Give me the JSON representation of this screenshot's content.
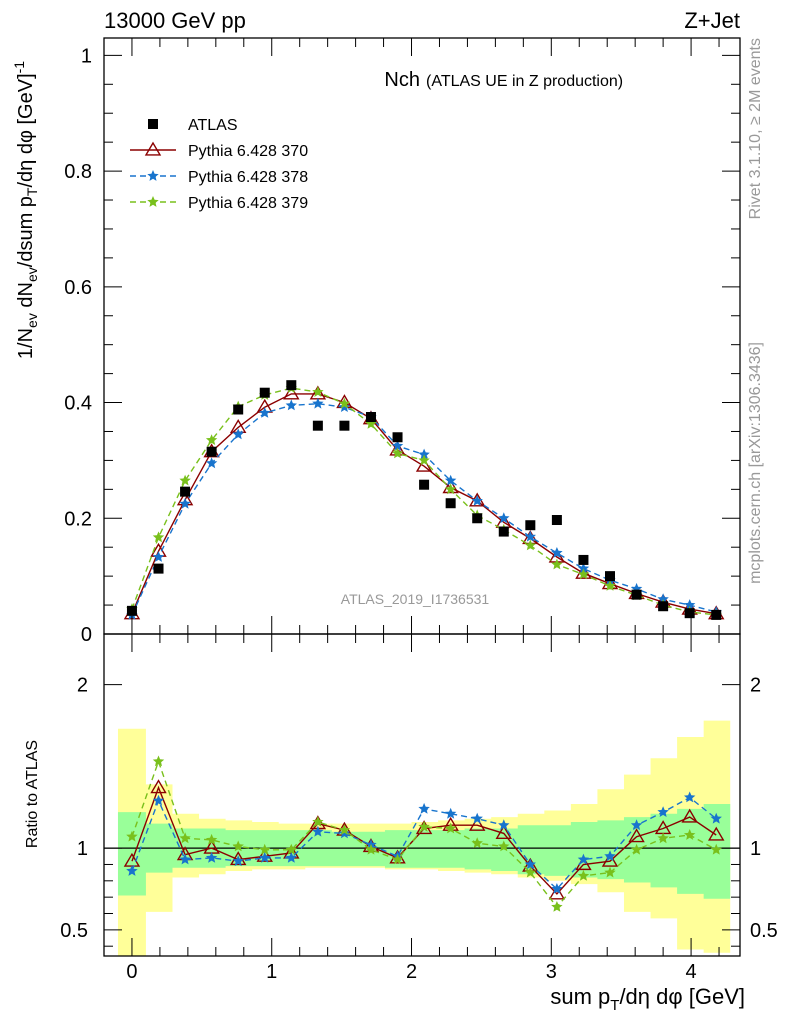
{
  "header": {
    "energy_label": "13000 GeV pp",
    "process_label": "Z+Jet",
    "side_label_top": "Rivet 3.1.10, ≥ 2M events",
    "side_label_bottom": "mcplots.cern.ch [arXiv:1306.3436]",
    "analysis_id": "ATLAS_2019_I1736531"
  },
  "chart_data": [
    {
      "type": "line",
      "title_main": "Nch",
      "title_sub": "(ATLAS UE in Z production)",
      "ylabel": "1/N_ev dN_ev/dsum p_T/dη dφ [GeV]^-1",
      "xlim": [
        -0.2,
        4.35
      ],
      "ylim": [
        0,
        1.03
      ],
      "yticks": [
        0,
        0.2,
        0.4,
        0.6,
        0.8,
        1
      ],
      "ytick_labels": [
        "0",
        "0.2",
        "0.4",
        "0.6",
        "0.8",
        "1"
      ],
      "legend_position": "top-left",
      "x": [
        0,
        0.19,
        0.38,
        0.57,
        0.76,
        0.95,
        1.14,
        1.33,
        1.52,
        1.71,
        1.9,
        2.09,
        2.28,
        2.47,
        2.66,
        2.85,
        3.04,
        3.23,
        3.42,
        3.61,
        3.8,
        3.99,
        4.18
      ],
      "series": [
        {
          "name": "ATLAS",
          "color": "#000000",
          "marker": "square",
          "values": [
            0.04,
            0.113,
            0.246,
            0.315,
            0.388,
            0.417,
            0.43,
            0.36,
            0.36,
            0.375,
            0.34,
            0.258,
            0.226,
            0.2,
            0.177,
            0.188,
            0.197,
            0.128,
            0.1,
            0.068,
            0.048,
            0.036,
            0.033
          ]
        },
        {
          "name": "Pythia 6.428 370",
          "color": "#8b0000",
          "marker": "triangle-open",
          "dash": "",
          "values": [
            0.035,
            0.143,
            0.232,
            0.315,
            0.357,
            0.392,
            0.415,
            0.415,
            0.4,
            0.372,
            0.318,
            0.29,
            0.253,
            0.23,
            0.193,
            0.165,
            0.133,
            0.105,
            0.087,
            0.07,
            0.055,
            0.043,
            0.035
          ]
        },
        {
          "name": "Pythia 6.428 378",
          "color": "#1874cd",
          "marker": "star",
          "dash": "6,4",
          "values": [
            0.033,
            0.133,
            0.225,
            0.295,
            0.345,
            0.382,
            0.395,
            0.398,
            0.392,
            0.375,
            0.325,
            0.31,
            0.265,
            0.23,
            0.2,
            0.168,
            0.14,
            0.113,
            0.093,
            0.078,
            0.06,
            0.05,
            0.038
          ]
        },
        {
          "name": "Pythia 6.428 379",
          "color": "#79c01c",
          "marker": "star",
          "dash": "6,4",
          "values": [
            0.043,
            0.167,
            0.265,
            0.335,
            0.393,
            0.413,
            0.425,
            0.418,
            0.398,
            0.363,
            0.312,
            0.3,
            0.25,
            0.205,
            0.18,
            0.153,
            0.12,
            0.103,
            0.083,
            0.067,
            0.05,
            0.038,
            0.033
          ]
        }
      ]
    },
    {
      "type": "line",
      "ylabel": "Ratio to ATLAS",
      "xlabel": "sum p_T/dη dφ [GeV]",
      "xlim": [
        -0.2,
        4.35
      ],
      "ylim": [
        0.34,
        2.31
      ],
      "yticks": [
        0.5,
        1,
        2
      ],
      "ytick_labels": [
        "0.5",
        "1",
        "2"
      ],
      "xticks": [
        0,
        1,
        2,
        3,
        4
      ],
      "xtick_labels": [
        "0",
        "1",
        "2",
        "3",
        "4"
      ],
      "reference_line": 1,
      "x": [
        0,
        0.19,
        0.38,
        0.57,
        0.76,
        0.95,
        1.14,
        1.33,
        1.52,
        1.71,
        1.9,
        2.09,
        2.28,
        2.47,
        2.66,
        2.85,
        3.04,
        3.23,
        3.42,
        3.61,
        3.8,
        3.99,
        4.18
      ],
      "bin_edges": [
        -0.1,
        0.1,
        0.29,
        0.48,
        0.67,
        0.86,
        1.05,
        1.24,
        1.43,
        1.62,
        1.81,
        2.0,
        2.19,
        2.38,
        2.57,
        2.76,
        2.95,
        3.14,
        3.33,
        3.52,
        3.71,
        3.9,
        4.09,
        4.28
      ],
      "band_inner": {
        "color": "#99ff99",
        "lower": [
          0.71,
          0.85,
          0.88,
          0.88,
          0.89,
          0.89,
          0.89,
          0.89,
          0.89,
          0.89,
          0.88,
          0.88,
          0.88,
          0.87,
          0.86,
          0.84,
          0.83,
          0.82,
          0.81,
          0.79,
          0.76,
          0.72,
          0.69
        ],
        "upper": [
          1.22,
          1.15,
          1.12,
          1.12,
          1.11,
          1.11,
          1.11,
          1.11,
          1.1,
          1.1,
          1.11,
          1.11,
          1.11,
          1.12,
          1.12,
          1.14,
          1.14,
          1.16,
          1.17,
          1.19,
          1.21,
          1.24,
          1.27
        ]
      },
      "band_outer": {
        "color": "#ffff99",
        "lower": [
          0.34,
          0.61,
          0.82,
          0.84,
          0.86,
          0.87,
          0.87,
          0.88,
          0.88,
          0.88,
          0.87,
          0.87,
          0.86,
          0.85,
          0.84,
          0.82,
          0.8,
          0.78,
          0.73,
          0.61,
          0.57,
          0.38,
          0.36
        ],
        "upper": [
          1.73,
          1.39,
          1.21,
          1.18,
          1.17,
          1.16,
          1.15,
          1.15,
          1.15,
          1.15,
          1.15,
          1.16,
          1.17,
          1.18,
          1.19,
          1.21,
          1.23,
          1.27,
          1.36,
          1.45,
          1.55,
          1.68,
          1.78
        ]
      },
      "series": [
        {
          "name": "Pythia 6.428 370",
          "color": "#8b0000",
          "marker": "triangle-open",
          "dash": "",
          "values": [
            0.92,
            1.37,
            0.96,
            1.0,
            0.93,
            0.95,
            0.97,
            1.15,
            1.11,
            1.01,
            0.94,
            1.12,
            1.14,
            1.14,
            1.09,
            0.89,
            0.72,
            0.9,
            0.92,
            1.07,
            1.12,
            1.19,
            1.08
          ]
        },
        {
          "name": "Pythia 6.428 378",
          "color": "#1874cd",
          "marker": "star",
          "dash": "6,4",
          "values": [
            0.86,
            1.29,
            0.93,
            0.94,
            0.92,
            0.94,
            0.94,
            1.1,
            1.09,
            1.02,
            0.95,
            1.24,
            1.21,
            1.18,
            1.14,
            0.9,
            0.75,
            0.93,
            0.95,
            1.14,
            1.22,
            1.31,
            1.18
          ]
        },
        {
          "name": "Pythia 6.428 379",
          "color": "#79c01c",
          "marker": "star",
          "dash": "6,4",
          "values": [
            1.07,
            1.53,
            1.06,
            1.05,
            1.01,
            0.99,
            0.99,
            1.16,
            1.11,
            0.99,
            0.93,
            1.13,
            1.12,
            1.03,
            1.01,
            0.85,
            0.64,
            0.83,
            0.85,
            0.99,
            1.06,
            1.08,
            0.99
          ]
        }
      ]
    }
  ]
}
